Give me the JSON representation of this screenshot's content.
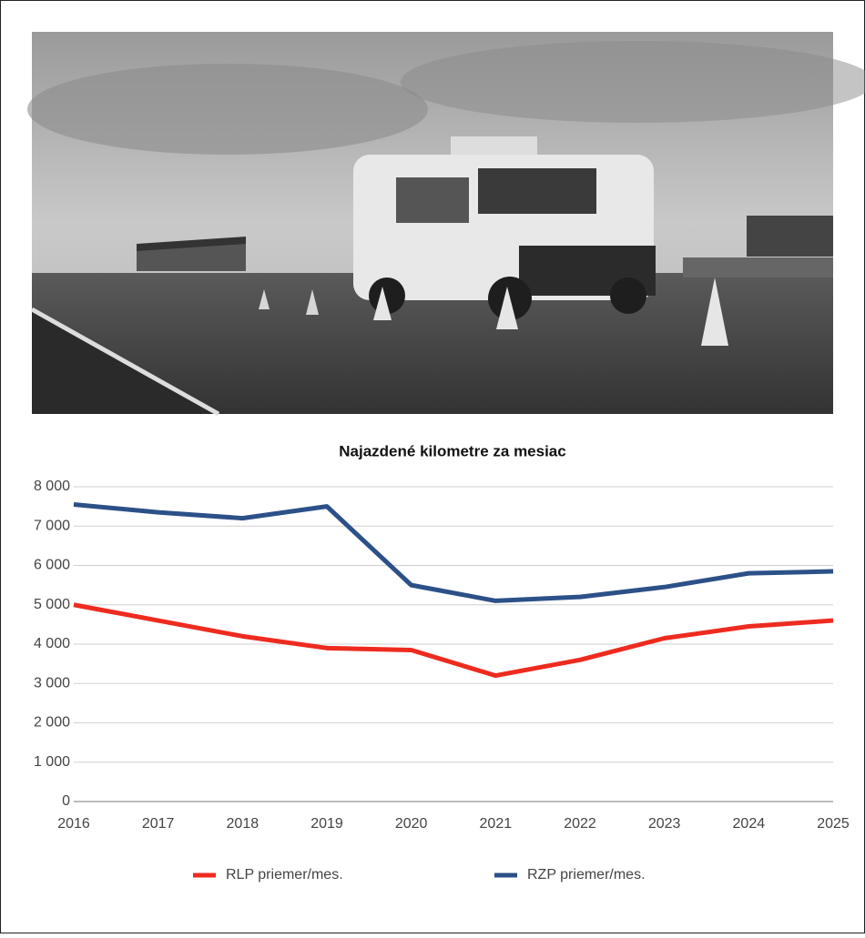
{
  "chart_data": {
    "type": "line",
    "title": "Najazdené kilometre za mesiac",
    "categories": [
      "2016",
      "2017",
      "2018",
      "2019",
      "2020",
      "2021",
      "2022",
      "2023",
      "2024",
      "2025"
    ],
    "series": [
      {
        "name": "RLP priemer/mes.",
        "color": "#ee2b1f",
        "values": [
          5000,
          4600,
          4200,
          3900,
          3850,
          3200,
          3600,
          4150,
          4450,
          4600
        ]
      },
      {
        "name": "RZP priemer/mes.",
        "color": "#2c5088",
        "values": [
          7550,
          7350,
          7200,
          7500,
          5500,
          5100,
          5200,
          5450,
          5800,
          5850
        ]
      }
    ],
    "ylim": [
      0,
      8000
    ],
    "yticks": [
      0,
      {
        "value": 1000,
        "label": "1 000"
      },
      {
        "value": 2000,
        "label": "2 000"
      },
      {
        "value": 3000,
        "label": "3 000"
      },
      {
        "value": 4000,
        "label": "4 000"
      },
      {
        "value": 5000,
        "label": "5 000"
      },
      {
        "value": 6000,
        "label": "6 000"
      },
      {
        "value": 7000,
        "label": "7 000"
      },
      {
        "value": 8000,
        "label": "8 000"
      }
    ],
    "grid": true,
    "legend": "bottom"
  }
}
